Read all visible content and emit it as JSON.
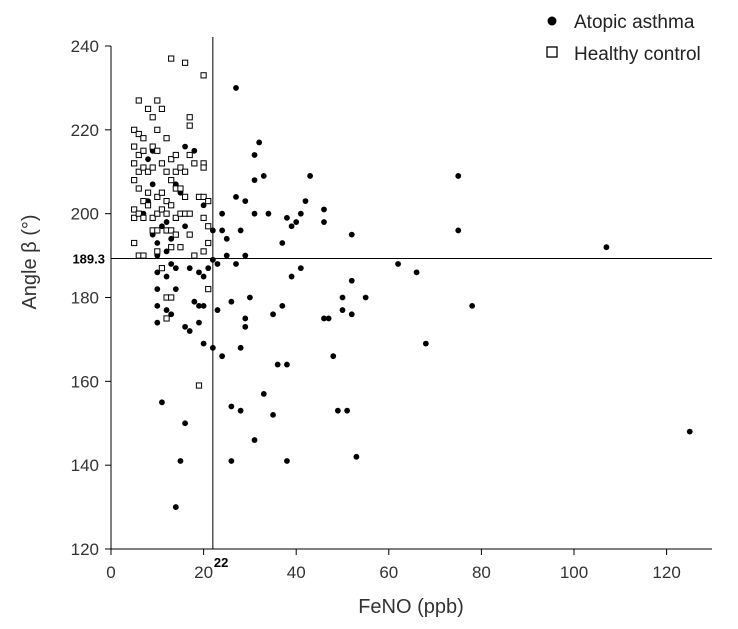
{
  "chart_data": {
    "type": "scatter",
    "title": "",
    "xlabel": "FeNO (ppb)",
    "ylabel": "Angle β (°)",
    "xlim": [
      0,
      130
    ],
    "ylim": [
      120,
      240
    ],
    "x_ticks": [
      0,
      20,
      40,
      60,
      80,
      100,
      120
    ],
    "y_ticks": [
      120,
      140,
      160,
      180,
      200,
      220,
      240
    ],
    "grid": false,
    "legend_position": "top-right",
    "reference_lines": {
      "vertical": {
        "value": 22,
        "label": "22"
      },
      "horizontal": {
        "value": 189.3,
        "label": "189.3"
      }
    },
    "series": [
      {
        "name": "Atopic asthma",
        "marker": "filled-circle",
        "color": "#000000",
        "points": [
          [
            7,
            200
          ],
          [
            8,
            203
          ],
          [
            8,
            213
          ],
          [
            9,
            207
          ],
          [
            9,
            215
          ],
          [
            9,
            195
          ],
          [
            10,
            193
          ],
          [
            10,
            190
          ],
          [
            10,
            186
          ],
          [
            10,
            182
          ],
          [
            10,
            178
          ],
          [
            10,
            174
          ],
          [
            11,
            197
          ],
          [
            11,
            155
          ],
          [
            12,
            198
          ],
          [
            12,
            191
          ],
          [
            12,
            185
          ],
          [
            12,
            177
          ],
          [
            13,
            208
          ],
          [
            13,
            194
          ],
          [
            13,
            188
          ],
          [
            13,
            180
          ],
          [
            13,
            176
          ],
          [
            14,
            207
          ],
          [
            14,
            199
          ],
          [
            14,
            187
          ],
          [
            14,
            182
          ],
          [
            14,
            130
          ],
          [
            15,
            205
          ],
          [
            15,
            192
          ],
          [
            15,
            141
          ],
          [
            16,
            216
          ],
          [
            16,
            197
          ],
          [
            16,
            173
          ],
          [
            16,
            150
          ],
          [
            17,
            187
          ],
          [
            17,
            172
          ],
          [
            18,
            215
          ],
          [
            18,
            212
          ],
          [
            18,
            179
          ],
          [
            19,
            186
          ],
          [
            19,
            178
          ],
          [
            19,
            174
          ],
          [
            20,
            202
          ],
          [
            20,
            185
          ],
          [
            20,
            178
          ],
          [
            20,
            169
          ],
          [
            21,
            187
          ],
          [
            21,
            182
          ],
          [
            22,
            196
          ],
          [
            22,
            189
          ],
          [
            22,
            168
          ],
          [
            23,
            188
          ],
          [
            23,
            177
          ],
          [
            24,
            200
          ],
          [
            24,
            196
          ],
          [
            24,
            166
          ],
          [
            25,
            194
          ],
          [
            25,
            190
          ],
          [
            26,
            154
          ],
          [
            26,
            141
          ],
          [
            26,
            179
          ],
          [
            27,
            230
          ],
          [
            27,
            204
          ],
          [
            27,
            188
          ],
          [
            28,
            196
          ],
          [
            28,
            168
          ],
          [
            28,
            153
          ],
          [
            29,
            203
          ],
          [
            29,
            190
          ],
          [
            29,
            175
          ],
          [
            29,
            173
          ],
          [
            30,
            180
          ],
          [
            31,
            214
          ],
          [
            31,
            208
          ],
          [
            31,
            200
          ],
          [
            31,
            146
          ],
          [
            32,
            217
          ],
          [
            33,
            209
          ],
          [
            33,
            157
          ],
          [
            34,
            200
          ],
          [
            35,
            176
          ],
          [
            35,
            152
          ],
          [
            36,
            164
          ],
          [
            37,
            193
          ],
          [
            37,
            178
          ],
          [
            38,
            199
          ],
          [
            38,
            164
          ],
          [
            38,
            141
          ],
          [
            39,
            197
          ],
          [
            39,
            185
          ],
          [
            40,
            198
          ],
          [
            41,
            187
          ],
          [
            41,
            200
          ],
          [
            42,
            203
          ],
          [
            43,
            209
          ],
          [
            46,
            201
          ],
          [
            46,
            198
          ],
          [
            46,
            175
          ],
          [
            47,
            175
          ],
          [
            48,
            166
          ],
          [
            49,
            153
          ],
          [
            50,
            180
          ],
          [
            50,
            177
          ],
          [
            51,
            153
          ],
          [
            52,
            195
          ],
          [
            52,
            184
          ],
          [
            52,
            176
          ],
          [
            53,
            142
          ],
          [
            55,
            180
          ],
          [
            62,
            188
          ],
          [
            66,
            186
          ],
          [
            68,
            169
          ],
          [
            75,
            209
          ],
          [
            75,
            196
          ],
          [
            78,
            178
          ],
          [
            107,
            192
          ],
          [
            125,
            148
          ]
        ]
      },
      {
        "name": "Healthy control",
        "marker": "open-square",
        "color": "#000000",
        "points": [
          [
            5,
            220
          ],
          [
            5,
            216
          ],
          [
            5,
            212
          ],
          [
            5,
            208
          ],
          [
            5,
            201
          ],
          [
            5,
            199
          ],
          [
            5,
            193
          ],
          [
            6,
            227
          ],
          [
            6,
            219
          ],
          [
            6,
            214
          ],
          [
            6,
            210
          ],
          [
            6,
            206
          ],
          [
            6,
            200
          ],
          [
            6,
            190
          ],
          [
            7,
            218
          ],
          [
            7,
            215
          ],
          [
            7,
            211
          ],
          [
            7,
            203
          ],
          [
            7,
            199
          ],
          [
            7,
            190
          ],
          [
            8,
            225
          ],
          [
            8,
            210
          ],
          [
            8,
            205
          ],
          [
            8,
            202
          ],
          [
            9,
            223
          ],
          [
            9,
            216
          ],
          [
            9,
            211
          ],
          [
            9,
            199
          ],
          [
            9,
            196
          ],
          [
            10,
            227
          ],
          [
            10,
            220
          ],
          [
            10,
            215
          ],
          [
            10,
            204
          ],
          [
            10,
            200
          ],
          [
            10,
            196
          ],
          [
            10,
            191
          ],
          [
            11,
            225
          ],
          [
            11,
            212
          ],
          [
            11,
            205
          ],
          [
            11,
            201
          ],
          [
            11,
            187
          ],
          [
            12,
            218
          ],
          [
            12,
            210
          ],
          [
            12,
            203
          ],
          [
            12,
            200
          ],
          [
            12,
            196
          ],
          [
            12,
            180
          ],
          [
            12,
            175
          ],
          [
            13,
            237
          ],
          [
            13,
            213
          ],
          [
            13,
            208
          ],
          [
            13,
            202
          ],
          [
            13,
            196
          ],
          [
            13,
            192
          ],
          [
            13,
            180
          ],
          [
            14,
            214
          ],
          [
            14,
            210
          ],
          [
            14,
            206
          ],
          [
            14,
            199
          ],
          [
            14,
            195
          ],
          [
            15,
            211
          ],
          [
            15,
            206
          ],
          [
            15,
            200
          ],
          [
            15,
            192
          ],
          [
            16,
            236
          ],
          [
            16,
            210
          ],
          [
            16,
            204
          ],
          [
            16,
            200
          ],
          [
            17,
            223
          ],
          [
            17,
            221
          ],
          [
            17,
            214
          ],
          [
            17,
            200
          ],
          [
            17,
            195
          ],
          [
            18,
            212
          ],
          [
            18,
            190
          ],
          [
            19,
            204
          ],
          [
            19,
            159
          ],
          [
            20,
            233
          ],
          [
            20,
            212
          ],
          [
            20,
            211
          ],
          [
            20,
            204
          ],
          [
            20,
            199
          ],
          [
            20,
            191
          ],
          [
            21,
            203
          ],
          [
            21,
            197
          ],
          [
            21,
            193
          ],
          [
            21,
            182
          ]
        ]
      }
    ]
  }
}
